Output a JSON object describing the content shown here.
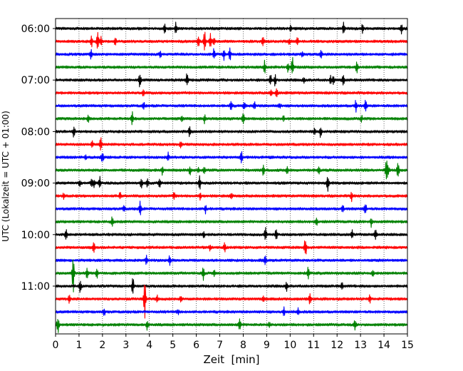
{
  "chart_data": {
    "type": "line",
    "title": "",
    "xlabel": "Zeit  [min]",
    "ylabel": "UTC (Lokalzeit = UTC + 01:00)",
    "x_ticks": [
      0,
      1,
      2,
      3,
      4,
      5,
      6,
      7,
      8,
      9,
      10,
      11,
      12,
      13,
      14,
      15
    ],
    "xlim": [
      0,
      15
    ],
    "y_tick_labels": [
      "06:00",
      "07:00",
      "08:00",
      "09:00",
      "10:00",
      "11:00"
    ],
    "trace_start_times": [
      "06:00",
      "06:15",
      "06:30",
      "06:45",
      "07:00",
      "07:15",
      "07:30",
      "07:45",
      "08:00",
      "08:15",
      "08:30",
      "08:45",
      "09:00",
      "09:15",
      "09:30",
      "09:45",
      "10:00",
      "10:15",
      "10:30",
      "10:45",
      "11:00",
      "11:15",
      "11:30",
      "11:45"
    ],
    "trace_colors": [
      "#000000",
      "#ff0000",
      "#0000ff",
      "#008000"
    ],
    "grid": "vertical dotted",
    "legend": "none",
    "spikes": [
      {
        "trace": 1,
        "minute": 1.8,
        "amplitude": 0.9
      },
      {
        "trace": 1,
        "minute": 6.35,
        "amplitude": 1.0
      },
      {
        "trace": 1,
        "minute": 6.6,
        "amplitude": 0.6
      },
      {
        "trace": 3,
        "minute": 10.1,
        "amplitude": 0.7
      },
      {
        "trace": 4,
        "minute": 3.6,
        "amplitude": 0.4
      },
      {
        "trace": 4,
        "minute": 5.6,
        "amplitude": 0.5
      },
      {
        "trace": 7,
        "minute": 8.0,
        "amplitude": 0.5
      },
      {
        "trace": 10,
        "minute": 2.0,
        "amplitude": 0.5
      },
      {
        "trace": 11,
        "minute": 14.1,
        "amplitude": 0.9
      },
      {
        "trace": 11,
        "minute": 14.6,
        "amplitude": 0.7
      },
      {
        "trace": 12,
        "minute": 11.6,
        "amplitude": 0.6
      },
      {
        "trace": 14,
        "minute": 3.6,
        "amplitude": 0.5
      },
      {
        "trace": 16,
        "minute": 0.45,
        "amplitude": 0.5
      },
      {
        "trace": 16,
        "minute": 8.95,
        "amplitude": 0.6
      },
      {
        "trace": 17,
        "minute": 10.65,
        "amplitude": 0.8
      },
      {
        "trace": 19,
        "minute": 0.75,
        "amplitude": 1.6
      },
      {
        "trace": 20,
        "minute": 1.05,
        "amplitude": 0.6
      },
      {
        "trace": 21,
        "minute": 3.8,
        "amplitude": 1.8
      },
      {
        "trace": 23,
        "minute": 0.1,
        "amplitude": 0.6
      },
      {
        "trace": 23,
        "minute": 7.85,
        "amplitude": 0.5
      }
    ]
  }
}
